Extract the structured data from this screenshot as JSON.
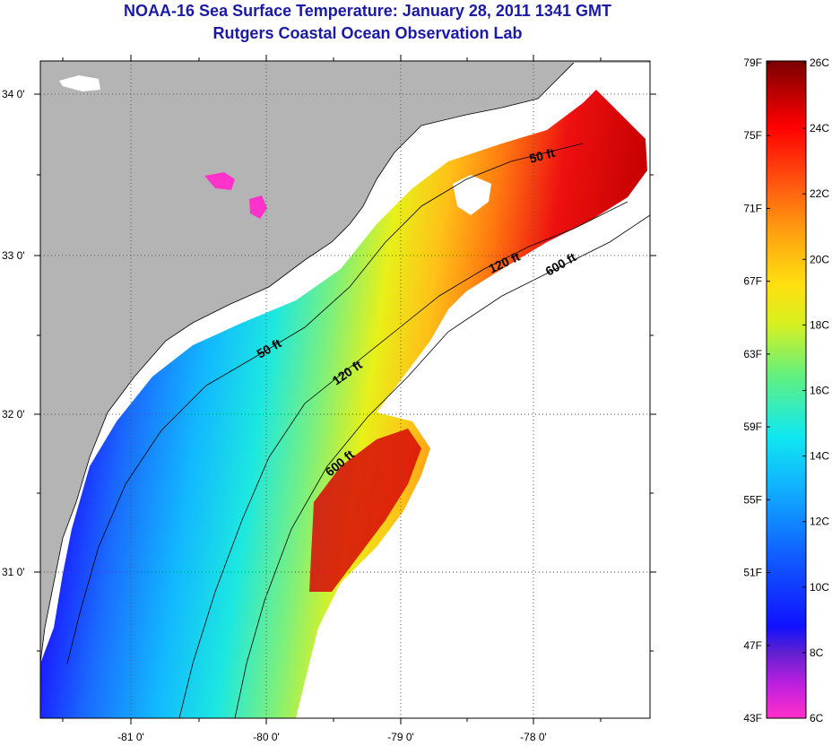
{
  "title": "NOAA-16 Sea Surface Temperature:  January 28, 2011 1341 GMT",
  "subtitle": "Rutgers Coastal Ocean Observation Lab",
  "map": {
    "lat_ticks": [
      "34 0'",
      "33 0'",
      "32 0'",
      "31 0'"
    ],
    "lon_ticks": [
      "-81 0'",
      "-80 0'",
      "-79 0'",
      "-78 0'"
    ],
    "contour_labels": [
      "50 ft",
      "50 ft",
      "120 ft",
      "120 ft",
      "600 ft",
      "600 ft"
    ],
    "colors": {
      "land": "#b4b4b4",
      "no_data": "#ffffff"
    }
  },
  "colorbar": {
    "fahrenheit": [
      "79F",
      "75F",
      "71F",
      "67F",
      "63F",
      "59F",
      "55F",
      "51F",
      "47F",
      "43F"
    ],
    "celsius": [
      "26C",
      "24C",
      "22C",
      "20C",
      "18C",
      "16C",
      "14C",
      "12C",
      "10C",
      "8C",
      "6C"
    ]
  }
}
